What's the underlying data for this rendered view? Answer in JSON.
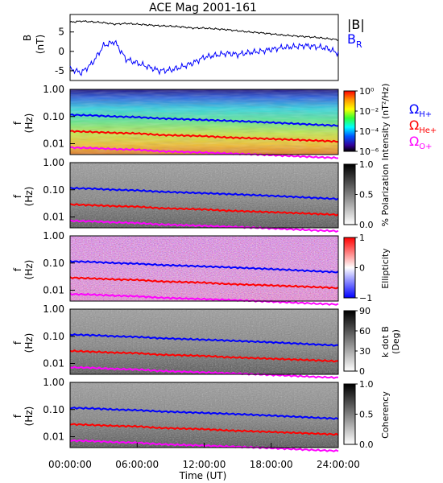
{
  "title": "ACE Mag 2001-161",
  "colors": {
    "B_total": "#000000",
    "B_R": "#0000ff",
    "H+": "#0000ff",
    "He+": "#ff0000",
    "O+": "#ff00ff"
  },
  "chart_data": [
    {
      "type": "line",
      "panel": "magnetic-field",
      "ylabel_line1": "B",
      "ylabel_line2": "(nT)",
      "yticks": [
        "5",
        "0",
        "-5"
      ],
      "ylim": [
        -7.5,
        9.5
      ],
      "legend_total": "|B|",
      "legend_radial_main": "B",
      "legend_radial_sub": "R",
      "x_hours": [
        0,
        1,
        2,
        3,
        4,
        5,
        6,
        7,
        8,
        9,
        10,
        11,
        12,
        13,
        14,
        15,
        16,
        17,
        18,
        19,
        20,
        21,
        22,
        23,
        24
      ],
      "series": [
        {
          "name": "|B|",
          "values": [
            7.5,
            7.8,
            7.6,
            7.4,
            7.0,
            7.2,
            7.0,
            6.8,
            6.6,
            6.5,
            6.3,
            6.0,
            6.0,
            5.8,
            5.6,
            5.3,
            5.0,
            4.8,
            4.5,
            4.2,
            4.0,
            3.8,
            3.6,
            3.3,
            3.0
          ]
        },
        {
          "name": "B_R",
          "values": [
            -4.5,
            -5.5,
            -3.0,
            1.5,
            2.5,
            -2.0,
            -3.0,
            -4.0,
            -5.0,
            -4.8,
            -4.0,
            -3.0,
            -1.5,
            -1.0,
            -0.5,
            -0.8,
            -0.3,
            0.0,
            0.5,
            1.0,
            1.2,
            1.5,
            1.2,
            0.8,
            -0.5
          ]
        }
      ]
    },
    {
      "type": "heatmap",
      "panel": "intensity",
      "ylabel_line1": "f",
      "ylabel_line2": "(Hz)",
      "yticks": [
        "1.00",
        "0.10",
        "0.01"
      ],
      "colorbar_label": "Intensity (nT²/Hz)",
      "colorbar_ticks": [
        "10⁰",
        "10⁻²",
        "10⁻⁴",
        "10⁻⁶"
      ],
      "legend": [
        {
          "label_main": "Ω",
          "label_sub": "H+"
        },
        {
          "label_main": "Ω",
          "label_sub": "He+"
        },
        {
          "label_main": "Ω",
          "label_sub": "O+"
        }
      ]
    },
    {
      "type": "heatmap",
      "panel": "polarization",
      "ylabel_line1": "f",
      "ylabel_line2": "(Hz)",
      "yticks": [
        "1.00",
        "0.10",
        "0.01"
      ],
      "colorbar_label": "% Polarization",
      "colorbar_ticks": [
        "1.0",
        "0.5",
        "0.0"
      ]
    },
    {
      "type": "heatmap",
      "panel": "ellipticity",
      "ylabel_line1": "f",
      "ylabel_line2": "(Hz)",
      "yticks": [
        "1.00",
        "0.10",
        "0.01"
      ],
      "colorbar_label": "Ellipticity",
      "colorbar_ticks": [
        "1",
        "0",
        "−1"
      ]
    },
    {
      "type": "heatmap",
      "panel": "kdotb",
      "ylabel_line1": "f",
      "ylabel_line2": "(Hz)",
      "yticks": [
        "1.00",
        "0.10",
        "0.01"
      ],
      "colorbar_label_line1": "k dot B",
      "colorbar_label_line2": "(Deg)",
      "colorbar_ticks": [
        "90",
        "60",
        "30",
        "0"
      ]
    },
    {
      "type": "heatmap",
      "panel": "coherency",
      "ylabel_line1": "f",
      "ylabel_line2": "(Hz)",
      "yticks": [
        "1.00",
        "0.10",
        "0.01"
      ],
      "colorbar_label": "Coherency",
      "colorbar_ticks": [
        "1.0",
        "0.5",
        "0.0"
      ]
    }
  ],
  "gyrofrequency_lines_hz": {
    "x_hours": [
      0,
      2,
      4,
      6,
      8,
      10,
      12,
      14,
      16,
      18,
      20,
      22,
      24
    ],
    "H+": [
      0.115,
      0.11,
      0.1,
      0.095,
      0.085,
      0.08,
      0.075,
      0.07,
      0.065,
      0.06,
      0.055,
      0.05,
      0.046
    ],
    "He+": [
      0.029,
      0.027,
      0.025,
      0.024,
      0.021,
      0.02,
      0.019,
      0.017,
      0.016,
      0.015,
      0.014,
      0.013,
      0.012
    ],
    "O+": [
      0.0072,
      0.0069,
      0.0063,
      0.006,
      0.0053,
      0.005,
      0.0047,
      0.0044,
      0.0041,
      0.0038,
      0.0035,
      0.0032,
      0.003
    ]
  },
  "x_axis": {
    "label": "Time (UT)",
    "ticks": [
      "00:00:00",
      "06:00:00",
      "12:00:00",
      "18:00:00",
      "24:00:00"
    ]
  }
}
